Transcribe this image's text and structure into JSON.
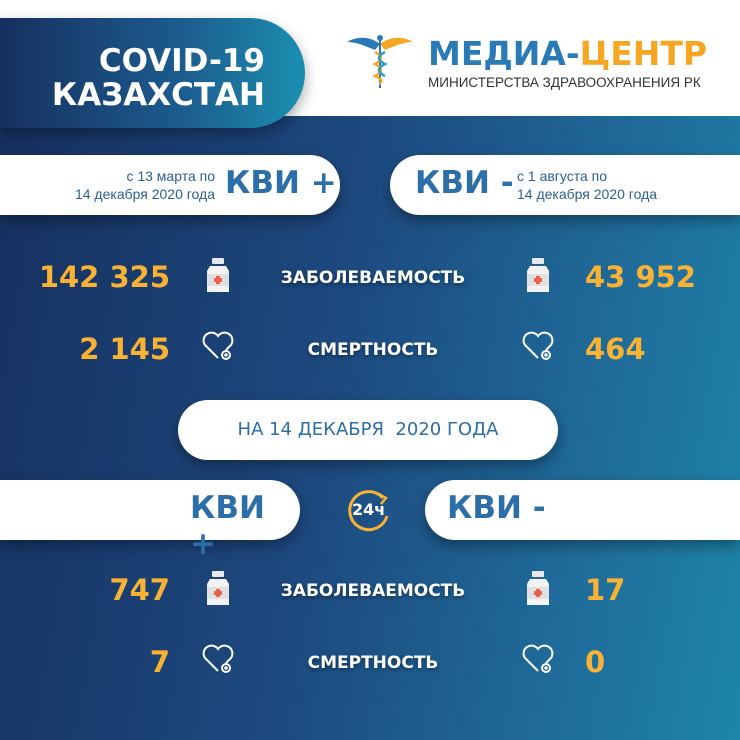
{
  "header": {
    "title_line1": "COVID-19",
    "title_line2": "КАЗАХСТАН",
    "logo_main_a": "МЕДИА-",
    "logo_main_b": "ЦЕНТР",
    "logo_sub": "МИНИСТЕРСТВА ЗДРАВООХРАНЕНИЯ РК"
  },
  "colors": {
    "accent_blue": "#2b6ea8",
    "number_orange": "#f9b233",
    "logo_orange": "#f5a623"
  },
  "cumulative": {
    "left": {
      "period_line1": "с 13 марта по",
      "period_line2": "14 декабря 2020 года",
      "label": "КВИ +"
    },
    "right": {
      "label": "КВИ -",
      "period_line1": "с 1 августа  по",
      "period_line2": "14 декабря 2020 года"
    },
    "rows": [
      {
        "label": "ЗАБОЛЕВАЕМОСТЬ",
        "left": "142 325",
        "right": "43 952",
        "icon": "medicine-bottle-icon"
      },
      {
        "label": "СМЕРТНОСТЬ",
        "left": "2 145",
        "right": "464",
        "icon": "heart-plus-icon"
      }
    ]
  },
  "daily": {
    "date_label": "НА 14 ДЕКАБРЯ  2020 ГОДА",
    "left_label": "КВИ +",
    "right_label": "КВИ -",
    "badge": "24ч",
    "rows": [
      {
        "label": "ЗАБОЛЕВАЕМОСТЬ",
        "left": "747",
        "right": "17",
        "icon": "medicine-bottle-icon"
      },
      {
        "label": "СМЕРТНОСТЬ",
        "left": "7",
        "right": "0",
        "icon": "heart-plus-icon"
      }
    ]
  }
}
